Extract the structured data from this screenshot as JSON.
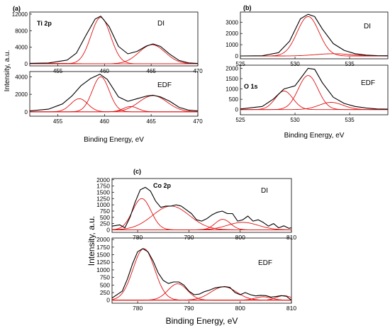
{
  "chart_data": [
    {
      "type": "line",
      "panel_label": "(a)",
      "element": "Ti 2p",
      "xlabel": "Binding Energy, eV",
      "ylabel": "Intensity, a.u.",
      "xlim": [
        452,
        470
      ],
      "x_ticks": [
        455,
        460,
        465,
        470
      ],
      "subplots": [
        {
          "name": "DI",
          "ylim": [
            -500,
            12500
          ],
          "y_ticks": [
            0,
            4000,
            8000,
            12000
          ],
          "experimental": {
            "x": [
              452,
              454,
              456,
              457,
              458,
              459,
              459.6,
              460.5,
              461.5,
              462.5,
              463.5,
              464.5,
              465.2,
              466,
              467,
              468,
              469,
              470
            ],
            "y": [
              120,
              200,
              900,
              2600,
              6800,
              10800,
              11500,
              9000,
              4200,
              2400,
              3000,
              4300,
              4800,
              4200,
              2300,
              800,
              220,
              100
            ]
          },
          "components": [
            {
              "center": 459.6,
              "amplitude": 11200,
              "sigma": 1.05
            },
            {
              "center": 465.1,
              "amplitude": 4600,
              "sigma": 1.4
            },
            {
              "center": 454.5,
              "amplitude": 120,
              "sigma": 2.0
            }
          ]
        },
        {
          "name": "EDF",
          "ylim": [
            -500,
            4600
          ],
          "y_ticks": [
            0,
            2000,
            4000
          ],
          "experimental": {
            "x": [
              452,
              454,
              455.5,
              456.5,
              457.5,
              458.5,
              459.5,
              460.3,
              461.5,
              462.5,
              463.5,
              464.5,
              465.2,
              466,
              467,
              468,
              469,
              470
            ],
            "y": [
              100,
              300,
              900,
              1800,
              3000,
              3800,
              4300,
              3700,
              1700,
              1200,
              1500,
              1800,
              1900,
              1700,
              1200,
              500,
              200,
              100
            ]
          },
          "components": [
            {
              "center": 457.3,
              "amplitude": 1500,
              "sigma": 0.9
            },
            {
              "center": 459.6,
              "amplitude": 4000,
              "sigma": 0.9
            },
            {
              "center": 462.8,
              "amplitude": 600,
              "sigma": 0.8
            },
            {
              "center": 465.2,
              "amplitude": 1850,
              "sigma": 1.5
            }
          ]
        }
      ]
    },
    {
      "type": "line",
      "panel_label": "(b)",
      "element": "O 1s",
      "xlabel": "Binding Energy, eV",
      "xlim": [
        525,
        538.5
      ],
      "x_ticks": [
        525,
        530,
        535
      ],
      "subplots": [
        {
          "name": "DI",
          "ylim": [
            -250,
            3900
          ],
          "y_ticks": [
            0,
            1000,
            2000,
            3000
          ],
          "experimental": {
            "x": [
              525,
              527,
              528.5,
              529.5,
              530.5,
              531.2,
              531.8,
              532.5,
              533.5,
              534.5,
              535.5,
              536.5,
              537.5,
              538.5
            ],
            "y": [
              0,
              20,
              300,
              1300,
              3300,
              3700,
              3500,
              2400,
              1100,
              500,
              200,
              80,
              30,
              20
            ]
          },
          "components": [
            {
              "center": 531.2,
              "amplitude": 3500,
              "sigma": 1.0
            },
            {
              "center": 533.5,
              "amplitude": 200,
              "sigma": 1.6
            }
          ]
        },
        {
          "name": "EDF",
          "ylim": [
            -250,
            2150
          ],
          "y_ticks": [
            0,
            500,
            1000,
            1500,
            2000
          ],
          "experimental": {
            "x": [
              525,
              527,
              528,
              529,
              530,
              530.5,
              531.2,
              531.8,
              532.5,
              533.5,
              534.5,
              535.5,
              536.5,
              537.5,
              538.5
            ],
            "y": [
              30,
              150,
              500,
              1000,
              1150,
              1500,
              2000,
              1950,
              1300,
              600,
              300,
              150,
              80,
              30,
              20
            ]
          },
          "components": [
            {
              "center": 529.0,
              "amplitude": 900,
              "sigma": 0.8
            },
            {
              "center": 531.2,
              "amplitude": 1650,
              "sigma": 0.9
            },
            {
              "center": 533.3,
              "amplitude": 350,
              "sigma": 1.1
            }
          ]
        }
      ]
    },
    {
      "type": "line",
      "panel_label": "(c)",
      "element": "Co 2p",
      "xlabel": "Binding Energy, eV",
      "ylabel": "Intensity, a.u.",
      "xlim": [
        775,
        810
      ],
      "x_ticks": [
        780,
        790,
        800,
        810
      ],
      "subplots": [
        {
          "name": "DI",
          "ylim": [
            -100,
            2050
          ],
          "y_ticks": [
            0,
            250,
            500,
            750,
            1000,
            1250,
            1500,
            1750,
            2000
          ],
          "experimental": {
            "x": [
              775,
              776.5,
              777.5,
              778.5,
              779.5,
              780.5,
              781.5,
              782.5,
              783.5,
              784.5,
              785.5,
              786.5,
              787.5,
              788.5,
              789.5,
              790.5,
              791.5,
              792.5,
              793.5,
              794.5,
              795.5,
              796.5,
              797.5,
              798.5,
              799.5,
              800.5,
              801.5,
              802.5,
              803.5,
              804.5,
              805.5,
              806.5,
              807.5,
              808.5,
              809.5,
              810
            ],
            "y": [
              150,
              200,
              80,
              500,
              1100,
              1600,
              1700,
              1550,
              1150,
              900,
              950,
              950,
              1000,
              950,
              800,
              650,
              400,
              350,
              450,
              600,
              700,
              750,
              650,
              650,
              350,
              400,
              550,
              350,
              400,
              300,
              150,
              250,
              80,
              160,
              60,
              80
            ]
          },
          "components": [
            {
              "center": 780.8,
              "amplitude": 1250,
              "sigma": 1.8
            },
            {
              "center": 786.5,
              "amplitude": 950,
              "sigma": 3.6
            },
            {
              "center": 796.6,
              "amplitude": 420,
              "sigma": 1.5
            },
            {
              "center": 800.5,
              "amplitude": 300,
              "sigma": 3.0
            }
          ]
        },
        {
          "name": "EDF",
          "ylim": [
            -100,
            2050
          ],
          "y_ticks": [
            0,
            250,
            500,
            750,
            1000,
            1250,
            1500,
            1750,
            2000
          ],
          "experimental": {
            "x": [
              775,
              777,
              778,
              779,
              780,
              781,
              782,
              783,
              784,
              785,
              786,
              787,
              788,
              789,
              790,
              791,
              792,
              793,
              794,
              795,
              796,
              797,
              798,
              799,
              800,
              801,
              802,
              803,
              804,
              805,
              806,
              807,
              808,
              809,
              810
            ],
            "y": [
              70,
              300,
              700,
              1200,
              1600,
              1700,
              1600,
              1300,
              900,
              650,
              550,
              600,
              600,
              500,
              300,
              180,
              200,
              280,
              330,
              400,
              430,
              450,
              420,
              250,
              180,
              250,
              180,
              140,
              160,
              150,
              100,
              120,
              150,
              130,
              0
            ]
          },
          "components": [
            {
              "center": 781.2,
              "amplitude": 1700,
              "sigma": 2.1
            },
            {
              "center": 787.8,
              "amplitude": 540,
              "sigma": 1.9
            },
            {
              "center": 796.8,
              "amplitude": 440,
              "sigma": 2.5
            },
            {
              "center": 804.5,
              "amplitude": 110,
              "sigma": 1.6
            },
            {
              "center": 808.5,
              "amplitude": 150,
              "sigma": 1.4
            }
          ]
        }
      ]
    }
  ]
}
